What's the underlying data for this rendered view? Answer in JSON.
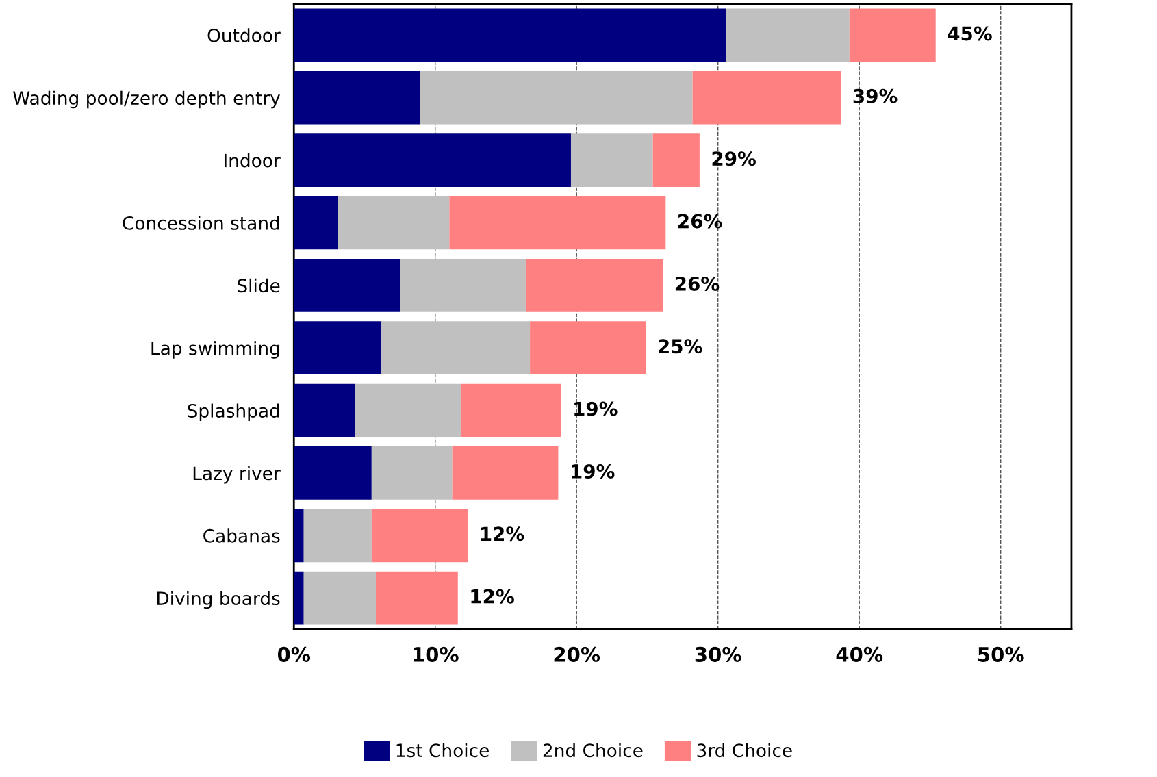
{
  "chart_data": {
    "type": "bar",
    "orientation": "horizontal",
    "stacked": true,
    "categories": [
      "Outdoor",
      "Wading pool/zero depth entry",
      "Indoor",
      "Concession stand",
      "Slide",
      "Lap swimming",
      "Splashpad",
      "Lazy river",
      "Cabanas",
      "Diving boards"
    ],
    "series": [
      {
        "name": "1st Choice",
        "color": "#000080",
        "values": [
          30.6,
          8.9,
          19.6,
          3.1,
          7.5,
          6.2,
          4.3,
          5.5,
          0.7,
          0.7
        ]
      },
      {
        "name": "2nd Choice",
        "color": "#c0c0c0",
        "values": [
          8.7,
          19.3,
          5.8,
          7.9,
          8.9,
          10.5,
          7.5,
          5.7,
          4.8,
          5.1
        ]
      },
      {
        "name": "3rd Choice",
        "color": "#ff8080",
        "values": [
          6.1,
          10.5,
          3.3,
          15.3,
          9.7,
          8.2,
          7.1,
          7.5,
          6.8,
          5.8
        ]
      }
    ],
    "totals": [
      "45%",
      "39%",
      "29%",
      "26%",
      "26%",
      "25%",
      "19%",
      "19%",
      "12%",
      "12%"
    ],
    "xlim": [
      0,
      55
    ],
    "xticks": [
      {
        "value": 0,
        "label": "0%"
      },
      {
        "value": 10,
        "label": "10%"
      },
      {
        "value": 20,
        "label": "20%"
      },
      {
        "value": 30,
        "label": "30%"
      },
      {
        "value": 40,
        "label": "40%"
      },
      {
        "value": 50,
        "label": "50%"
      }
    ],
    "grid": "x",
    "legend": "bottom"
  }
}
